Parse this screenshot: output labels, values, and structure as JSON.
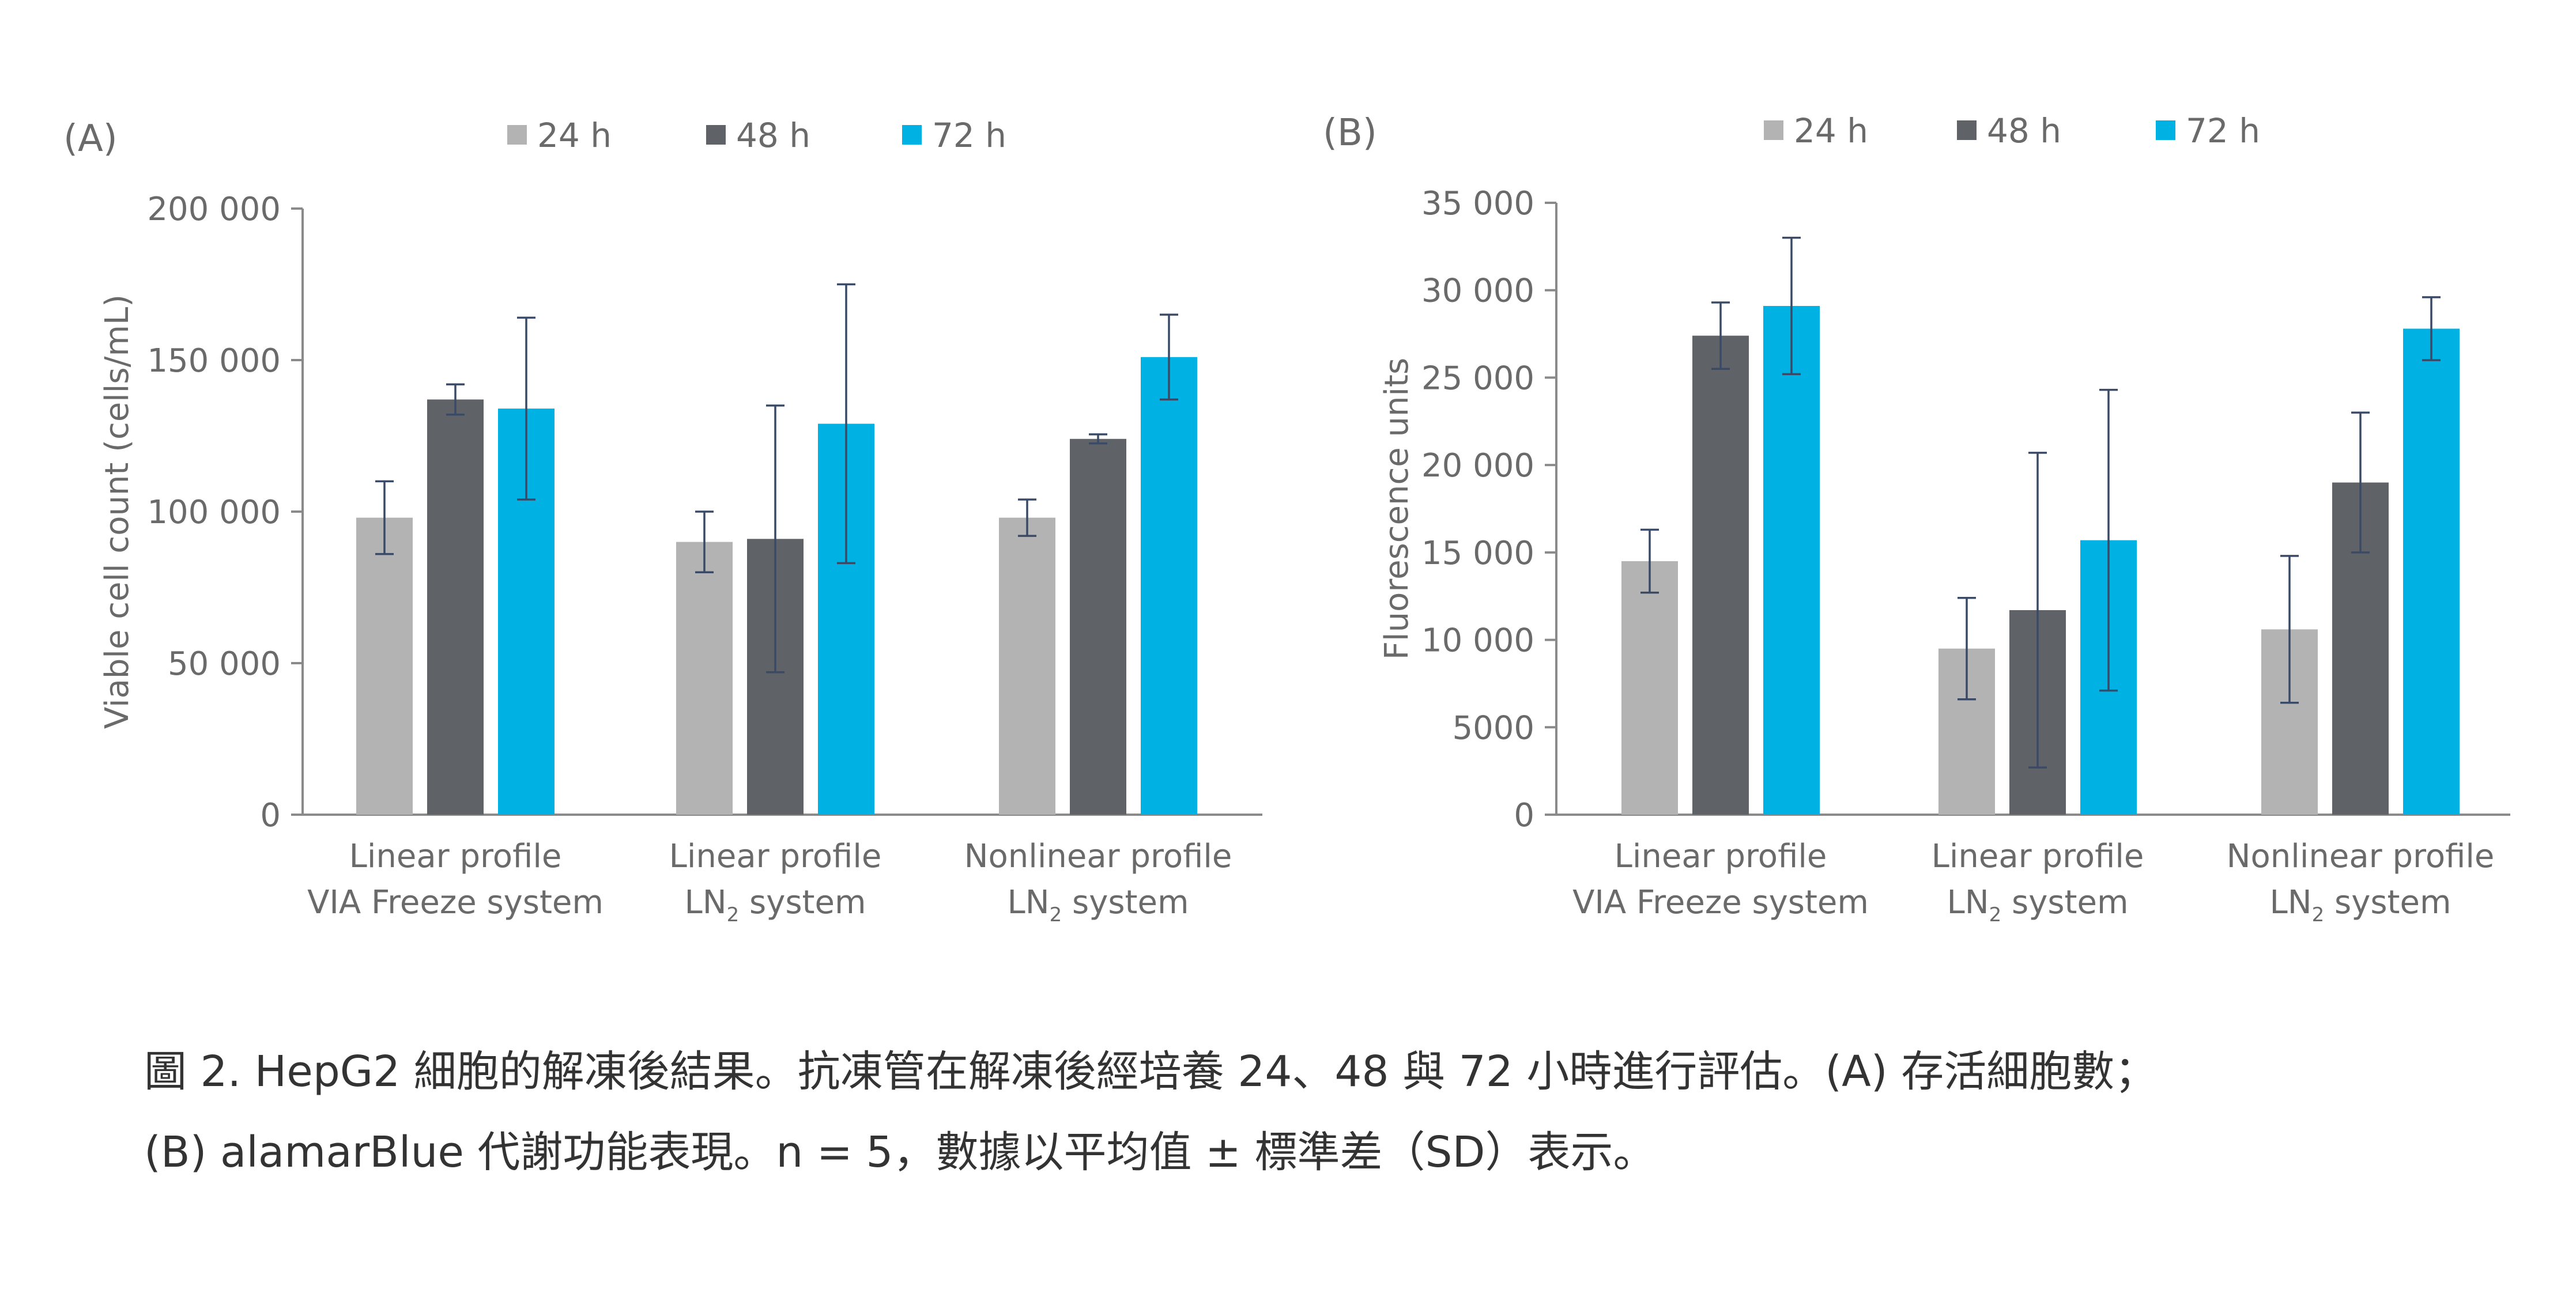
{
  "colors": {
    "series": [
      "#b3b3b3",
      "#5f6368",
      "#00b2e3"
    ],
    "axis": "#8a8a8a",
    "text": "#6a6a6a",
    "error_bar": "#3a4a66"
  },
  "chart_data": [
    {
      "type": "bar",
      "panel_label": "(A)",
      "ylabel": "Viable cell count (cells/mL)",
      "ylim": [
        0,
        200000
      ],
      "yticks": [
        0,
        50000,
        100000,
        150000,
        200000
      ],
      "ytick_labels": [
        "0",
        "50 000",
        "100 000",
        "150 000",
        "200 000"
      ],
      "categories": [
        {
          "line1": "Linear profile",
          "line2": "VIA Freeze system",
          "sub": ""
        },
        {
          "line1": "Linear profile",
          "line2": "LN",
          "sub": "2",
          "line2_rest": " system"
        },
        {
          "line1": "Nonlinear profile",
          "line2": "LN",
          "sub": "2",
          "line2_rest": " system"
        }
      ],
      "legend_position": "top",
      "series": [
        {
          "name": "24 h",
          "values": [
            98000,
            90000,
            98000
          ],
          "errors": [
            12000,
            10000,
            6000
          ]
        },
        {
          "name": "48 h",
          "values": [
            137000,
            91000,
            124000
          ],
          "errors": [
            5000,
            44000,
            1500
          ]
        },
        {
          "name": "72 h",
          "values": [
            134000,
            129000,
            151000
          ],
          "errors": [
            30000,
            46000,
            14000
          ]
        }
      ]
    },
    {
      "type": "bar",
      "panel_label": "(B)",
      "ylabel": "Fluorescence units",
      "ylim": [
        0,
        35000
      ],
      "yticks": [
        0,
        5000,
        10000,
        15000,
        20000,
        25000,
        30000,
        35000
      ],
      "ytick_labels": [
        "0",
        "5000",
        "10 000",
        "15 000",
        "20 000",
        "25 000",
        "30 000",
        "35 000"
      ],
      "categories": [
        {
          "line1": "Linear profile",
          "line2": "VIA Freeze system",
          "sub": ""
        },
        {
          "line1": "Linear profile",
          "line2": "LN",
          "sub": "2",
          "line2_rest": " system"
        },
        {
          "line1": "Nonlinear profile",
          "line2": "LN",
          "sub": "2",
          "line2_rest": " system"
        }
      ],
      "legend_position": "top",
      "series": [
        {
          "name": "24 h",
          "values": [
            14500,
            9500,
            10600
          ],
          "errors": [
            1800,
            2900,
            4200
          ]
        },
        {
          "name": "48 h",
          "values": [
            27400,
            11700,
            19000
          ],
          "errors": [
            1900,
            9000,
            4000
          ]
        },
        {
          "name": "72 h",
          "values": [
            29100,
            15700,
            27800
          ],
          "errors": [
            3900,
            8600,
            1800
          ]
        }
      ]
    }
  ],
  "caption": {
    "line1": "圖 2. HepG2 細胞的解凍後結果。抗凍管在解凍後經培養 24、48 與 72 小時進行評估。(A) 存活細胞數；",
    "line2": "(B) alamarBlue 代謝功能表現。n = 5，數據以平均值 ± 標準差（SD）表示。"
  }
}
